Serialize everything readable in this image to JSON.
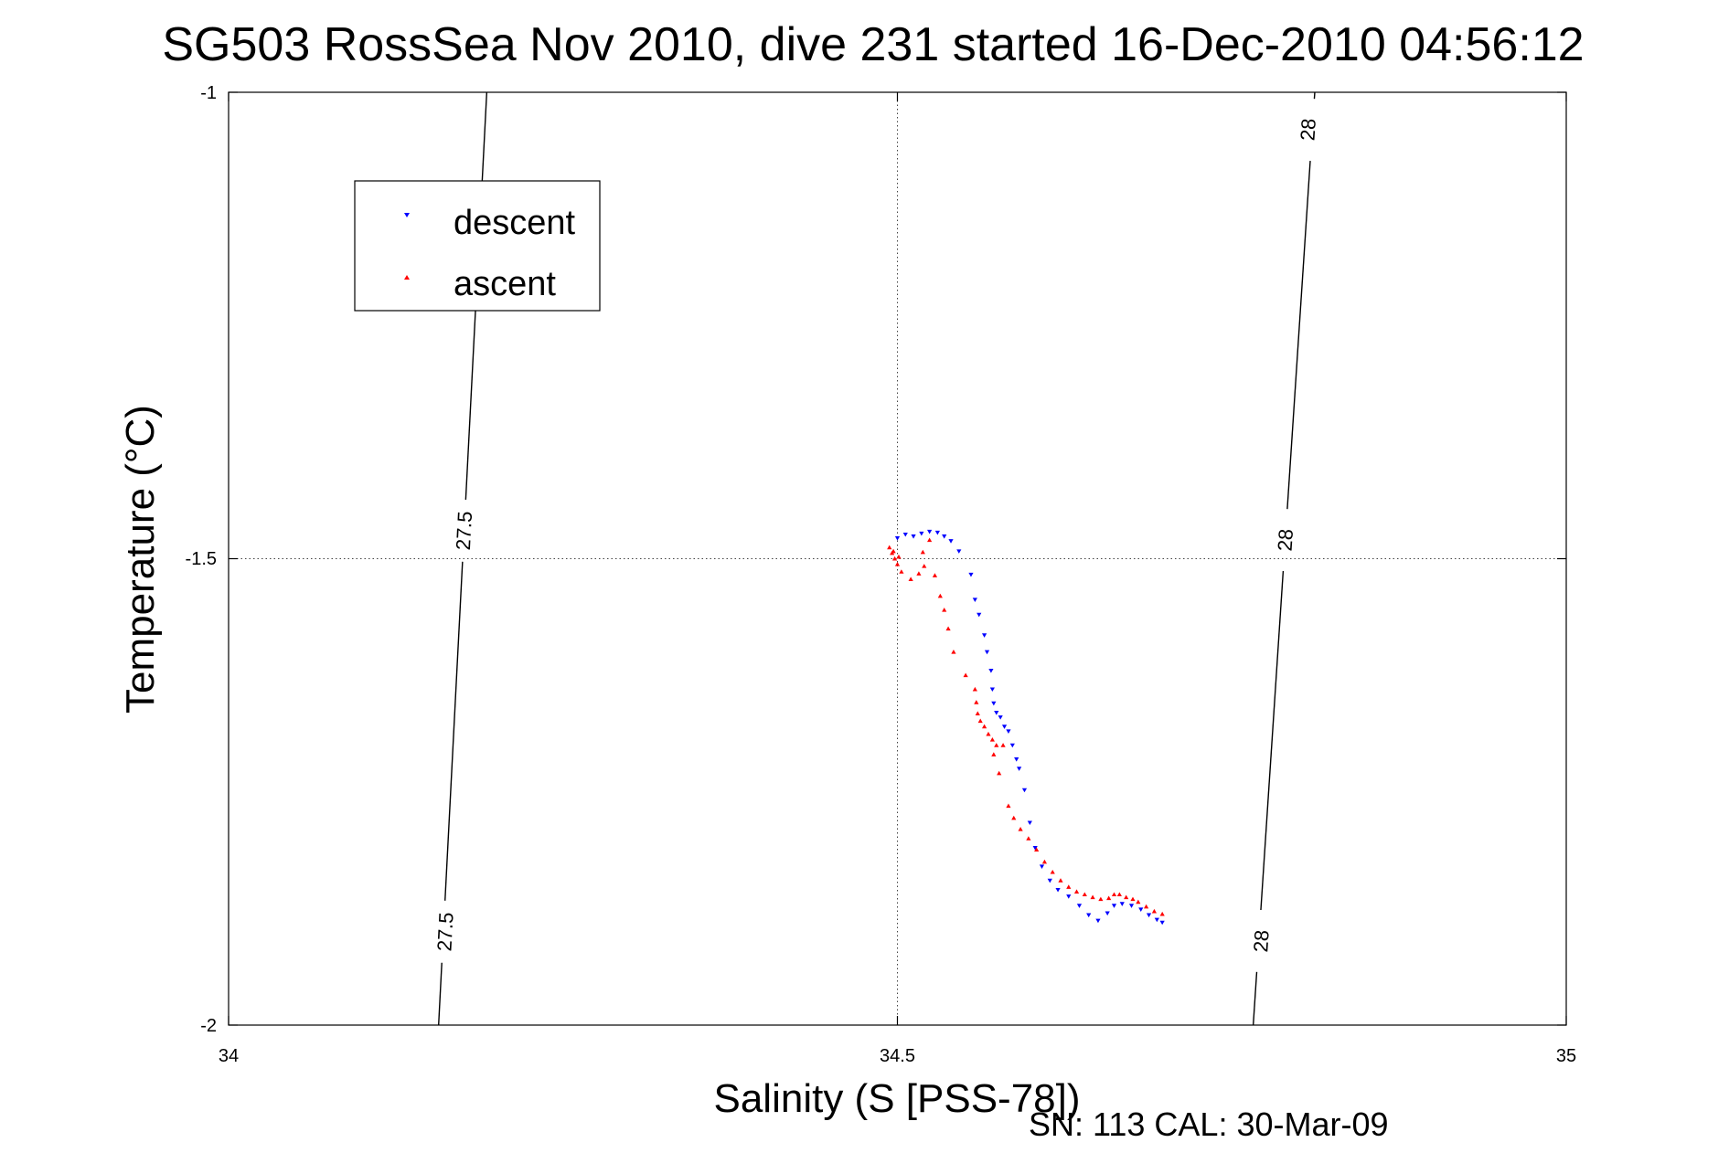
{
  "chart_data": {
    "type": "scatter",
    "title": "SG503 RossSea Nov 2010, dive 231 started 16-Dec-2010 04:56:12",
    "xlabel": "Salinity (S [PSS-78])",
    "ylabel": "Temperature (°C)",
    "xlim": [
      34,
      35
    ],
    "ylim": [
      -2,
      -1
    ],
    "xticks": [
      "34",
      "34.5",
      "35"
    ],
    "yticks": [
      "-1",
      "-1.5",
      "-2"
    ],
    "grid": "dotted",
    "legend_position": "top-left",
    "footnote": "SN: 113  CAL: 30-Mar-09",
    "isopycnals": [
      {
        "label": "27.5",
        "points": [
          [
            34.193,
            -1.0
          ],
          [
            34.157,
            -2.0
          ]
        ],
        "label_at": [
          [
            34.176,
            -1.47
          ],
          [
            34.162,
            -1.9
          ]
        ]
      },
      {
        "label": "28",
        "points": [
          [
            34.812,
            -1.0
          ],
          [
            34.766,
            -2.0
          ]
        ],
        "label_at": [
          [
            34.807,
            -1.04
          ],
          [
            34.79,
            -1.48
          ],
          [
            34.772,
            -1.91
          ]
        ]
      }
    ],
    "series": [
      {
        "name": "descent",
        "color": "#0000ff",
        "marker": "triangle-down",
        "points": [
          [
            34.5,
            -1.478
          ],
          [
            34.506,
            -1.474
          ],
          [
            34.512,
            -1.476
          ],
          [
            34.518,
            -1.473
          ],
          [
            34.524,
            -1.471
          ],
          [
            34.53,
            -1.472
          ],
          [
            34.535,
            -1.476
          ],
          [
            34.54,
            -1.481
          ],
          [
            34.546,
            -1.492
          ],
          [
            34.555,
            -1.517
          ],
          [
            34.558,
            -1.544
          ],
          [
            34.561,
            -1.56
          ],
          [
            34.565,
            -1.582
          ],
          [
            34.567,
            -1.6
          ],
          [
            34.57,
            -1.62
          ],
          [
            34.571,
            -1.64
          ],
          [
            34.572,
            -1.655
          ],
          [
            34.574,
            -1.665
          ],
          [
            34.577,
            -1.67
          ],
          [
            34.58,
            -1.68
          ],
          [
            34.583,
            -1.685
          ],
          [
            34.586,
            -1.7
          ],
          [
            34.589,
            -1.715
          ],
          [
            34.591,
            -1.725
          ],
          [
            34.595,
            -1.748
          ],
          [
            34.599,
            -1.783
          ],
          [
            34.603,
            -1.81
          ],
          [
            34.608,
            -1.83
          ],
          [
            34.614,
            -1.845
          ],
          [
            34.62,
            -1.855
          ],
          [
            34.628,
            -1.862
          ],
          [
            34.636,
            -1.872
          ],
          [
            34.643,
            -1.882
          ],
          [
            34.65,
            -1.888
          ],
          [
            34.657,
            -1.88
          ],
          [
            34.662,
            -1.872
          ],
          [
            34.668,
            -1.87
          ],
          [
            34.675,
            -1.872
          ],
          [
            34.682,
            -1.876
          ],
          [
            34.688,
            -1.882
          ],
          [
            34.694,
            -1.887
          ],
          [
            34.698,
            -1.89
          ]
        ]
      },
      {
        "name": "ascent",
        "color": "#ff0000",
        "marker": "triangle-up",
        "points": [
          [
            34.494,
            -1.488
          ],
          [
            34.496,
            -1.494
          ],
          [
            34.498,
            -1.5
          ],
          [
            34.5,
            -1.506
          ],
          [
            34.501,
            -1.498
          ],
          [
            34.497,
            -1.492
          ],
          [
            34.503,
            -1.514
          ],
          [
            34.51,
            -1.522
          ],
          [
            34.516,
            -1.516
          ],
          [
            34.52,
            -1.508
          ],
          [
            34.519,
            -1.493
          ],
          [
            34.524,
            -1.48
          ],
          [
            34.528,
            -1.518
          ],
          [
            34.532,
            -1.54
          ],
          [
            34.535,
            -1.555
          ],
          [
            34.538,
            -1.575
          ],
          [
            34.542,
            -1.6
          ],
          [
            34.551,
            -1.625
          ],
          [
            34.558,
            -1.64
          ],
          [
            34.559,
            -1.654
          ],
          [
            34.56,
            -1.666
          ],
          [
            34.562,
            -1.674
          ],
          [
            34.565,
            -1.68
          ],
          [
            34.568,
            -1.688
          ],
          [
            34.571,
            -1.694
          ],
          [
            34.574,
            -1.7
          ],
          [
            34.572,
            -1.71
          ],
          [
            34.579,
            -1.7
          ],
          [
            34.576,
            -1.73
          ],
          [
            34.583,
            -1.765
          ],
          [
            34.587,
            -1.778
          ],
          [
            34.592,
            -1.79
          ],
          [
            34.598,
            -1.8
          ],
          [
            34.604,
            -1.812
          ],
          [
            34.61,
            -1.825
          ],
          [
            34.616,
            -1.836
          ],
          [
            34.622,
            -1.845
          ],
          [
            34.628,
            -1.852
          ],
          [
            34.634,
            -1.857
          ],
          [
            34.64,
            -1.86
          ],
          [
            34.646,
            -1.863
          ],
          [
            34.652,
            -1.865
          ],
          [
            34.658,
            -1.864
          ],
          [
            34.662,
            -1.86
          ],
          [
            34.666,
            -1.86
          ],
          [
            34.671,
            -1.863
          ],
          [
            34.676,
            -1.865
          ],
          [
            34.68,
            -1.868
          ],
          [
            34.686,
            -1.873
          ],
          [
            34.692,
            -1.878
          ],
          [
            34.698,
            -1.881
          ]
        ]
      }
    ]
  }
}
